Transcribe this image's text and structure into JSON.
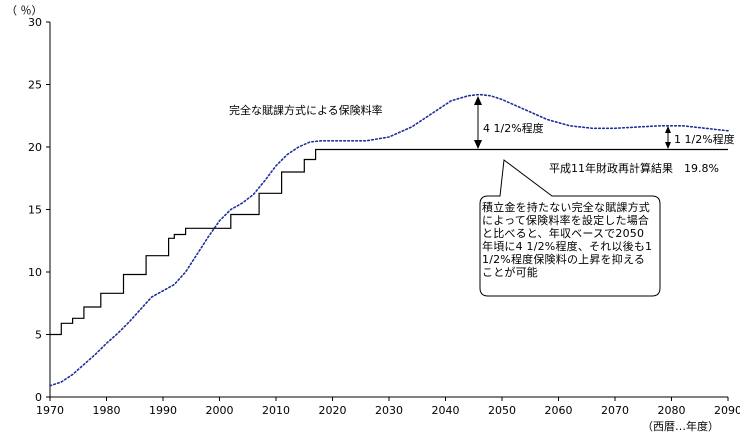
{
  "chart_data": {
    "type": "line",
    "ylabel": "（ ％）",
    "xlabel": "（西暦…年度）",
    "xlim": [
      1970,
      2090
    ],
    "ylim": [
      0,
      30
    ],
    "x_ticks": [
      1970,
      1980,
      1990,
      2000,
      2010,
      2020,
      2030,
      2040,
      2050,
      2060,
      2070,
      2080,
      2090
    ],
    "y_ticks": [
      0,
      5,
      10,
      15,
      20,
      25,
      30
    ],
    "grid": false,
    "series": [
      {
        "name": "完全な賦課方式による保険料率",
        "style": "dotted",
        "color": "#1f2f9a",
        "points": [
          [
            1970,
            0.9
          ],
          [
            1972,
            1.2
          ],
          [
            1974,
            1.8
          ],
          [
            1976,
            2.6
          ],
          [
            1978,
            3.4
          ],
          [
            1980,
            4.3
          ],
          [
            1982,
            5.1
          ],
          [
            1984,
            6.0
          ],
          [
            1986,
            7.0
          ],
          [
            1988,
            8.0
          ],
          [
            1990,
            8.5
          ],
          [
            1992,
            9.0
          ],
          [
            1994,
            10.0
          ],
          [
            1996,
            11.4
          ],
          [
            1998,
            12.8
          ],
          [
            2000,
            14.1
          ],
          [
            2002,
            15.0
          ],
          [
            2004,
            15.5
          ],
          [
            2006,
            16.2
          ],
          [
            2008,
            17.3
          ],
          [
            2010,
            18.5
          ],
          [
            2012,
            19.4
          ],
          [
            2014,
            20.0
          ],
          [
            2016,
            20.4
          ],
          [
            2018,
            20.5
          ],
          [
            2022,
            20.5
          ],
          [
            2026,
            20.5
          ],
          [
            2030,
            20.8
          ],
          [
            2034,
            21.6
          ],
          [
            2038,
            22.8
          ],
          [
            2041,
            23.7
          ],
          [
            2044,
            24.1
          ],
          [
            2046,
            24.2
          ],
          [
            2048,
            24.1
          ],
          [
            2050,
            23.8
          ],
          [
            2054,
            23.0
          ],
          [
            2058,
            22.2
          ],
          [
            2062,
            21.7
          ],
          [
            2066,
            21.5
          ],
          [
            2070,
            21.5
          ],
          [
            2074,
            21.6
          ],
          [
            2078,
            21.7
          ],
          [
            2082,
            21.7
          ],
          [
            2086,
            21.5
          ],
          [
            2090,
            21.3
          ]
        ]
      },
      {
        "name": "平成11年財政再計算結果　19.8%",
        "style": "step",
        "color": "#000000",
        "points": [
          [
            1970,
            5.0
          ],
          [
            1972,
            5.0
          ],
          [
            1972,
            5.9
          ],
          [
            1974,
            5.9
          ],
          [
            1974,
            6.3
          ],
          [
            1976,
            6.3
          ],
          [
            1976,
            7.2
          ],
          [
            1979,
            7.2
          ],
          [
            1979,
            8.3
          ],
          [
            1983,
            8.3
          ],
          [
            1983,
            9.8
          ],
          [
            1987,
            9.8
          ],
          [
            1987,
            11.3
          ],
          [
            1991,
            11.3
          ],
          [
            1991,
            12.7
          ],
          [
            1992,
            12.7
          ],
          [
            1992,
            13.0
          ],
          [
            1994,
            13.0
          ],
          [
            1994,
            13.5
          ],
          [
            2002,
            13.5
          ],
          [
            2002,
            14.6
          ],
          [
            2007,
            14.6
          ],
          [
            2007,
            16.3
          ],
          [
            2011,
            16.3
          ],
          [
            2011,
            18.0
          ],
          [
            2015,
            18.0
          ],
          [
            2015,
            19.0
          ],
          [
            2017,
            19.0
          ],
          [
            2017,
            19.8
          ],
          [
            2090,
            19.8
          ]
        ]
      }
    ],
    "annotations": {
      "diff_2050": "4 1/2%程度",
      "diff_2080": "1 1/2%程度",
      "callout": "積立金を持たない完全な賦課方式によって保険料率を設定した場合と比べると、年収ベースで2050年頃に4 1/2%程度、それ以後も1 1/2%程度保険料の上昇を抑えることが可能"
    }
  }
}
